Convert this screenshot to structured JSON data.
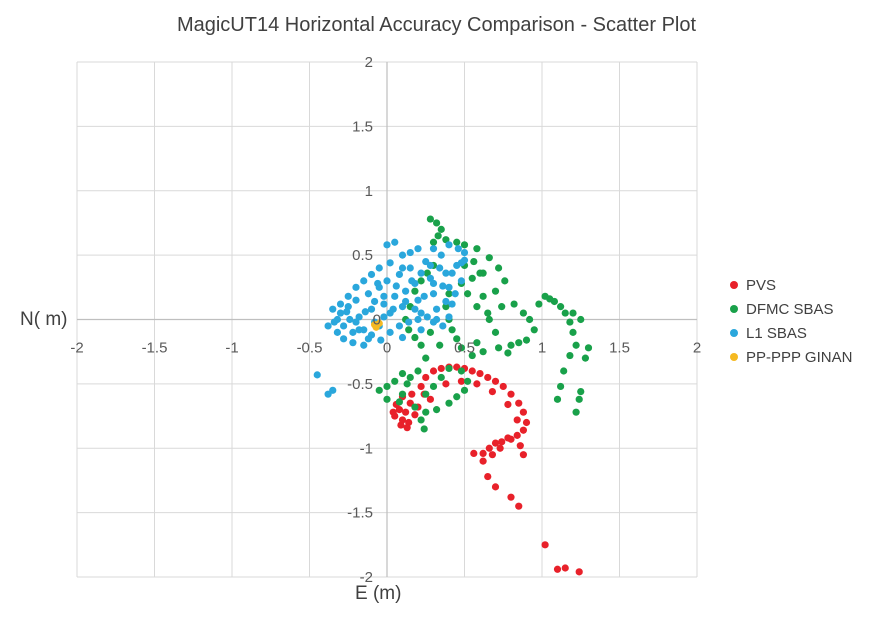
{
  "chart_data": {
    "type": "scatter",
    "title": "MagicUT14 Horizontal Accuracy Comparison - Scatter Plot",
    "xlabel": "E (m)",
    "ylabel": "N( m)",
    "xlim": [
      -2,
      2
    ],
    "ylim": [
      -2,
      2
    ],
    "x_ticks": [
      "-2",
      "-1.5",
      "-1",
      "-0.5",
      "0",
      "0.5",
      "1",
      "1.5",
      "2"
    ],
    "y_ticks": [
      "2",
      "1.5",
      "1",
      "0.5",
      "0",
      "-0.5",
      "-1",
      "-1.5",
      "-2"
    ],
    "grid": true,
    "legend_position": "right",
    "series": [
      {
        "name": "PVS",
        "color": "#e8212a",
        "points": [
          [
            0.08,
            -0.7
          ],
          [
            0.05,
            -0.75
          ],
          [
            0.1,
            -0.78
          ],
          [
            0.12,
            -0.72
          ],
          [
            0.15,
            -0.65
          ],
          [
            0.1,
            -0.6
          ],
          [
            0.06,
            -0.66
          ],
          [
            0.14,
            -0.8
          ],
          [
            0.18,
            -0.74
          ],
          [
            0.2,
            -0.68
          ],
          [
            0.16,
            -0.58
          ],
          [
            0.22,
            -0.52
          ],
          [
            0.25,
            -0.45
          ],
          [
            0.3,
            -0.4
          ],
          [
            0.35,
            -0.38
          ],
          [
            0.4,
            -0.37
          ],
          [
            0.45,
            -0.37
          ],
          [
            0.5,
            -0.38
          ],
          [
            0.55,
            -0.4
          ],
          [
            0.6,
            -0.42
          ],
          [
            0.65,
            -0.45
          ],
          [
            0.7,
            -0.48
          ],
          [
            0.75,
            -0.52
          ],
          [
            0.8,
            -0.58
          ],
          [
            0.85,
            -0.65
          ],
          [
            0.88,
            -0.72
          ],
          [
            0.9,
            -0.8
          ],
          [
            0.88,
            -0.86
          ],
          [
            0.84,
            -0.9
          ],
          [
            0.8,
            -0.93
          ],
          [
            0.74,
            -0.95
          ],
          [
            0.7,
            -0.96
          ],
          [
            0.66,
            -1.0
          ],
          [
            0.62,
            -1.04
          ],
          [
            0.56,
            -1.04
          ],
          [
            0.68,
            -1.05
          ],
          [
            0.73,
            -1.0
          ],
          [
            0.78,
            -0.92
          ],
          [
            0.86,
            -0.98
          ],
          [
            0.88,
            -1.05
          ],
          [
            0.62,
            -1.1
          ],
          [
            0.65,
            -1.22
          ],
          [
            0.7,
            -1.3
          ],
          [
            0.8,
            -1.38
          ],
          [
            0.85,
            -1.45
          ],
          [
            1.02,
            -1.75
          ],
          [
            1.1,
            -1.94
          ],
          [
            1.15,
            -1.93
          ],
          [
            1.24,
            -1.96
          ],
          [
            0.28,
            -0.62
          ],
          [
            0.24,
            -0.58
          ],
          [
            0.04,
            -0.72
          ],
          [
            0.09,
            -0.82
          ],
          [
            0.13,
            -0.84
          ],
          [
            0.38,
            -0.5
          ],
          [
            0.48,
            -0.48
          ],
          [
            0.58,
            -0.5
          ],
          [
            0.68,
            -0.56
          ],
          [
            0.78,
            -0.66
          ],
          [
            0.84,
            -0.78
          ]
        ]
      },
      {
        "name": "DFMC SBAS",
        "color": "#19a14a",
        "points": [
          [
            0.28,
            0.78
          ],
          [
            0.32,
            0.75
          ],
          [
            0.35,
            0.7
          ],
          [
            0.33,
            0.65
          ],
          [
            0.3,
            0.6
          ],
          [
            0.38,
            0.62
          ],
          [
            0.45,
            0.6
          ],
          [
            0.5,
            0.58
          ],
          [
            0.58,
            0.55
          ],
          [
            0.66,
            0.48
          ],
          [
            0.72,
            0.4
          ],
          [
            0.76,
            0.3
          ],
          [
            0.7,
            0.22
          ],
          [
            0.62,
            0.18
          ],
          [
            0.58,
            0.1
          ],
          [
            0.65,
            0.05
          ],
          [
            0.74,
            0.1
          ],
          [
            0.82,
            0.12
          ],
          [
            0.88,
            0.05
          ],
          [
            0.92,
            0.0
          ],
          [
            0.95,
            -0.08
          ],
          [
            0.9,
            -0.16
          ],
          [
            0.85,
            -0.18
          ],
          [
            0.8,
            -0.2
          ],
          [
            0.72,
            -0.22
          ],
          [
            0.62,
            -0.25
          ],
          [
            0.55,
            -0.28
          ],
          [
            0.48,
            -0.22
          ],
          [
            0.45,
            -0.15
          ],
          [
            0.42,
            -0.08
          ],
          [
            0.4,
            0.0
          ],
          [
            0.38,
            0.1
          ],
          [
            0.4,
            0.2
          ],
          [
            0.48,
            0.28
          ],
          [
            0.55,
            0.32
          ],
          [
            0.62,
            0.36
          ],
          [
            0.3,
            0.42
          ],
          [
            0.26,
            0.36
          ],
          [
            0.22,
            0.3
          ],
          [
            0.18,
            0.22
          ],
          [
            0.15,
            0.1
          ],
          [
            0.12,
            0.0
          ],
          [
            0.14,
            -0.08
          ],
          [
            0.18,
            -0.14
          ],
          [
            0.22,
            -0.2
          ],
          [
            0.25,
            -0.3
          ],
          [
            0.2,
            -0.4
          ],
          [
            0.15,
            -0.45
          ],
          [
            0.1,
            -0.42
          ],
          [
            0.05,
            -0.48
          ],
          [
            0.0,
            -0.52
          ],
          [
            -0.05,
            -0.55
          ],
          [
            0.0,
            -0.62
          ],
          [
            0.08,
            -0.64
          ],
          [
            0.18,
            -0.68
          ],
          [
            0.25,
            -0.72
          ],
          [
            0.32,
            -0.7
          ],
          [
            0.4,
            -0.65
          ],
          [
            0.45,
            -0.6
          ],
          [
            0.5,
            -0.55
          ],
          [
            0.52,
            -0.48
          ],
          [
            0.48,
            -0.4
          ],
          [
            0.4,
            -0.38
          ],
          [
            0.35,
            -0.45
          ],
          [
            0.3,
            -0.52
          ],
          [
            0.25,
            -0.58
          ],
          [
            0.22,
            -0.78
          ],
          [
            0.24,
            -0.85
          ],
          [
            0.1,
            -0.58
          ],
          [
            0.13,
            -0.5
          ],
          [
            1.02,
            0.18
          ],
          [
            1.08,
            0.14
          ],
          [
            1.12,
            0.1
          ],
          [
            1.15,
            0.05
          ],
          [
            1.18,
            -0.02
          ],
          [
            1.2,
            -0.1
          ],
          [
            1.22,
            -0.2
          ],
          [
            1.18,
            -0.28
          ],
          [
            1.14,
            -0.4
          ],
          [
            1.12,
            -0.52
          ],
          [
            1.1,
            -0.62
          ],
          [
            1.24,
            -0.62
          ],
          [
            1.22,
            -0.72
          ],
          [
            1.25,
            -0.56
          ],
          [
            1.28,
            -0.3
          ],
          [
            1.3,
            -0.22
          ],
          [
            1.25,
            0.0
          ],
          [
            1.2,
            0.05
          ],
          [
            1.05,
            0.16
          ],
          [
            0.98,
            0.12
          ],
          [
            0.5,
            0.42
          ],
          [
            0.56,
            0.45
          ],
          [
            0.6,
            0.36
          ],
          [
            0.52,
            0.2
          ],
          [
            0.66,
            0.0
          ],
          [
            0.7,
            -0.1
          ],
          [
            0.78,
            -0.26
          ],
          [
            0.58,
            -0.18
          ],
          [
            0.34,
            -0.2
          ],
          [
            0.28,
            -0.1
          ]
        ]
      },
      {
        "name": "L1 SBAS",
        "color": "#2aa7dc",
        "points": [
          [
            -0.45,
            -0.43
          ],
          [
            -0.35,
            -0.55
          ],
          [
            -0.38,
            -0.58
          ],
          [
            -0.32,
            0.0
          ],
          [
            -0.3,
            0.05
          ],
          [
            -0.28,
            -0.05
          ],
          [
            -0.25,
            0.1
          ],
          [
            -0.22,
            -0.1
          ],
          [
            -0.2,
            0.15
          ],
          [
            -0.18,
            0.02
          ],
          [
            -0.15,
            -0.08
          ],
          [
            -0.12,
            0.2
          ],
          [
            -0.1,
            0.08
          ],
          [
            -0.08,
            -0.02
          ],
          [
            -0.05,
            0.25
          ],
          [
            -0.02,
            0.12
          ],
          [
            0.0,
            0.3
          ],
          [
            0.02,
            0.05
          ],
          [
            0.05,
            0.18
          ],
          [
            0.08,
            0.35
          ],
          [
            0.1,
            0.1
          ],
          [
            0.12,
            0.22
          ],
          [
            0.15,
            0.4
          ],
          [
            0.18,
            0.28
          ],
          [
            0.2,
            0.15
          ],
          [
            0.22,
            0.05
          ],
          [
            0.25,
            0.45
          ],
          [
            0.28,
            0.32
          ],
          [
            0.3,
            0.2
          ],
          [
            0.32,
            0.08
          ],
          [
            0.35,
            0.5
          ],
          [
            0.38,
            0.36
          ],
          [
            0.4,
            0.25
          ],
          [
            0.42,
            0.12
          ],
          [
            0.45,
            0.42
          ],
          [
            0.48,
            0.3
          ],
          [
            0.5,
            0.46
          ],
          [
            0.46,
            0.55
          ],
          [
            0.4,
            0.58
          ],
          [
            0.3,
            0.55
          ],
          [
            0.2,
            0.55
          ],
          [
            0.1,
            0.5
          ],
          [
            0.0,
            0.58
          ],
          [
            0.05,
            0.6
          ],
          [
            0.15,
            0.52
          ],
          [
            -0.05,
            0.4
          ],
          [
            -0.1,
            0.35
          ],
          [
            -0.15,
            0.3
          ],
          [
            -0.2,
            0.25
          ],
          [
            -0.25,
            0.18
          ],
          [
            -0.3,
            0.12
          ],
          [
            -0.35,
            0.08
          ],
          [
            -0.38,
            -0.05
          ],
          [
            -0.32,
            -0.1
          ],
          [
            -0.28,
            -0.15
          ],
          [
            -0.22,
            -0.18
          ],
          [
            -0.15,
            -0.2
          ],
          [
            -0.1,
            -0.12
          ],
          [
            -0.05,
            -0.05
          ],
          [
            0.02,
            -0.1
          ],
          [
            0.08,
            -0.05
          ],
          [
            0.14,
            -0.02
          ],
          [
            0.2,
            0.0
          ],
          [
            0.26,
            0.02
          ],
          [
            0.32,
            0.0
          ],
          [
            0.36,
            -0.05
          ],
          [
            0.4,
            0.02
          ],
          [
            -0.12,
            -0.15
          ],
          [
            -0.18,
            -0.08
          ],
          [
            -0.24,
            0.0
          ],
          [
            -0.02,
            0.02
          ],
          [
            0.04,
            0.08
          ],
          [
            -0.08,
            0.14
          ],
          [
            -0.14,
            0.06
          ],
          [
            0.12,
            0.14
          ],
          [
            0.18,
            0.08
          ],
          [
            0.24,
            0.18
          ],
          [
            0.06,
            0.26
          ],
          [
            -0.02,
            0.18
          ],
          [
            0.3,
            0.28
          ],
          [
            0.5,
            0.52
          ],
          [
            0.44,
            0.2
          ],
          [
            0.38,
            0.14
          ],
          [
            0.34,
            0.4
          ],
          [
            0.28,
            0.42
          ],
          [
            0.16,
            0.3
          ],
          [
            -0.06,
            0.28
          ],
          [
            -0.26,
            0.06
          ],
          [
            -0.34,
            -0.02
          ],
          [
            -0.2,
            -0.02
          ],
          [
            0.02,
            0.44
          ],
          [
            0.1,
            0.4
          ],
          [
            0.22,
            0.36
          ],
          [
            0.36,
            0.26
          ],
          [
            0.42,
            0.36
          ],
          [
            0.48,
            0.44
          ],
          [
            -0.04,
            -0.16
          ],
          [
            0.1,
            -0.14
          ],
          [
            0.22,
            -0.08
          ],
          [
            0.3,
            -0.02
          ]
        ]
      },
      {
        "name": "PP-PPP GINAN",
        "color": "#f5b921",
        "points": [
          [
            -0.07,
            -0.06
          ],
          [
            -0.05,
            -0.03
          ],
          [
            -0.08,
            -0.04
          ]
        ]
      }
    ]
  }
}
